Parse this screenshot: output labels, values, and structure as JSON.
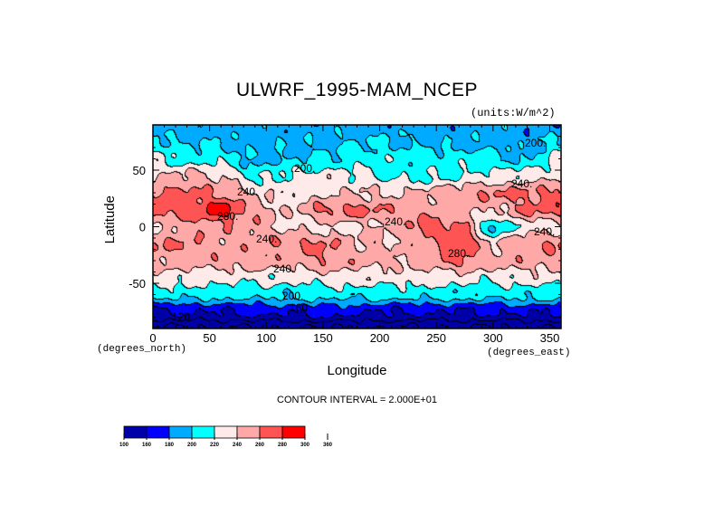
{
  "chart_data": {
    "type": "heatmap",
    "subtype": "filled-contour-map",
    "title": "ULWRF_1995-MAM_NCEP",
    "units_label": "(units:W/m^2)",
    "xlabel": "Longitude",
    "ylabel": "Latitude",
    "x_units_label": "(degrees_east)",
    "y_units_label": "(degrees_north)",
    "xlim": [
      0,
      360
    ],
    "ylim": [
      -90,
      90
    ],
    "x_ticks": [
      "0",
      "50",
      "100",
      "150",
      "200",
      "250",
      "300",
      "350"
    ],
    "x_tick_values": [
      0,
      50,
      100,
      150,
      200,
      250,
      300,
      350
    ],
    "y_ticks": [
      "-50",
      "0",
      "50"
    ],
    "y_tick_values": [
      -50,
      0,
      50
    ],
    "contour_interval_text": "CONTOUR INTERVAL = 2.000E+01",
    "grid_lon": [
      0,
      30,
      60,
      90,
      120,
      150,
      180,
      210,
      240,
      270,
      300,
      330,
      360
    ],
    "grid_lat": [
      90,
      75,
      60,
      45,
      30,
      15,
      0,
      -15,
      -30,
      -45,
      -60,
      -75,
      -90
    ],
    "values": [
      [
        188,
        188,
        190,
        190,
        190,
        190,
        190,
        190,
        190,
        190,
        190,
        188,
        188
      ],
      [
        205,
        200,
        195,
        195,
        195,
        195,
        200,
        200,
        195,
        195,
        195,
        190,
        205
      ],
      [
        230,
        212,
        212,
        195,
        198,
        200,
        212,
        212,
        212,
        210,
        205,
        198,
        230
      ],
      [
        235,
        245,
        240,
        215,
        225,
        230,
        225,
        215,
        215,
        220,
        225,
        230,
        235
      ],
      [
        265,
        265,
        255,
        240,
        230,
        235,
        240,
        240,
        245,
        250,
        262,
        262,
        265
      ],
      [
        270,
        270,
        290,
        255,
        235,
        262,
        265,
        255,
        250,
        245,
        240,
        262,
        270
      ],
      [
        230,
        250,
        255,
        250,
        235,
        232,
        235,
        245,
        270,
        265,
        200,
        230,
        230
      ],
      [
        262,
        258,
        250,
        250,
        262,
        262,
        245,
        240,
        250,
        275,
        240,
        255,
        262
      ],
      [
        250,
        250,
        250,
        250,
        250,
        258,
        250,
        245,
        250,
        265,
        250,
        250,
        250
      ],
      [
        230,
        230,
        228,
        228,
        225,
        230,
        230,
        230,
        230,
        230,
        225,
        230,
        230
      ],
      [
        208,
        208,
        206,
        206,
        206,
        208,
        208,
        208,
        208,
        208,
        206,
        208,
        208
      ],
      [
        160,
        162,
        160,
        165,
        165,
        170,
        165,
        160,
        162,
        160,
        162,
        165,
        160
      ],
      [
        120,
        120,
        120,
        120,
        120,
        120,
        120,
        120,
        120,
        120,
        120,
        120,
        120
      ]
    ],
    "contour_labels": [
      "200.",
      "200.",
      "240.",
      "240.",
      "240.",
      "240.",
      "240.",
      "240.",
      "280.",
      "280.",
      "200.",
      "160.",
      "120."
    ],
    "colorbar": {
      "levels": [
        "100",
        "160",
        "180",
        "200",
        "220",
        "240",
        "260",
        "280",
        "300",
        "360"
      ],
      "level_values": [
        100,
        160,
        180,
        200,
        220,
        240,
        260,
        280,
        300,
        360
      ],
      "colors": [
        "#0000a8",
        "#0000ff",
        "#00aaff",
        "#00ffff",
        "#ffeaea",
        "#ffa8a8",
        "#ff5454",
        "#ff0000"
      ]
    },
    "grid": false
  }
}
